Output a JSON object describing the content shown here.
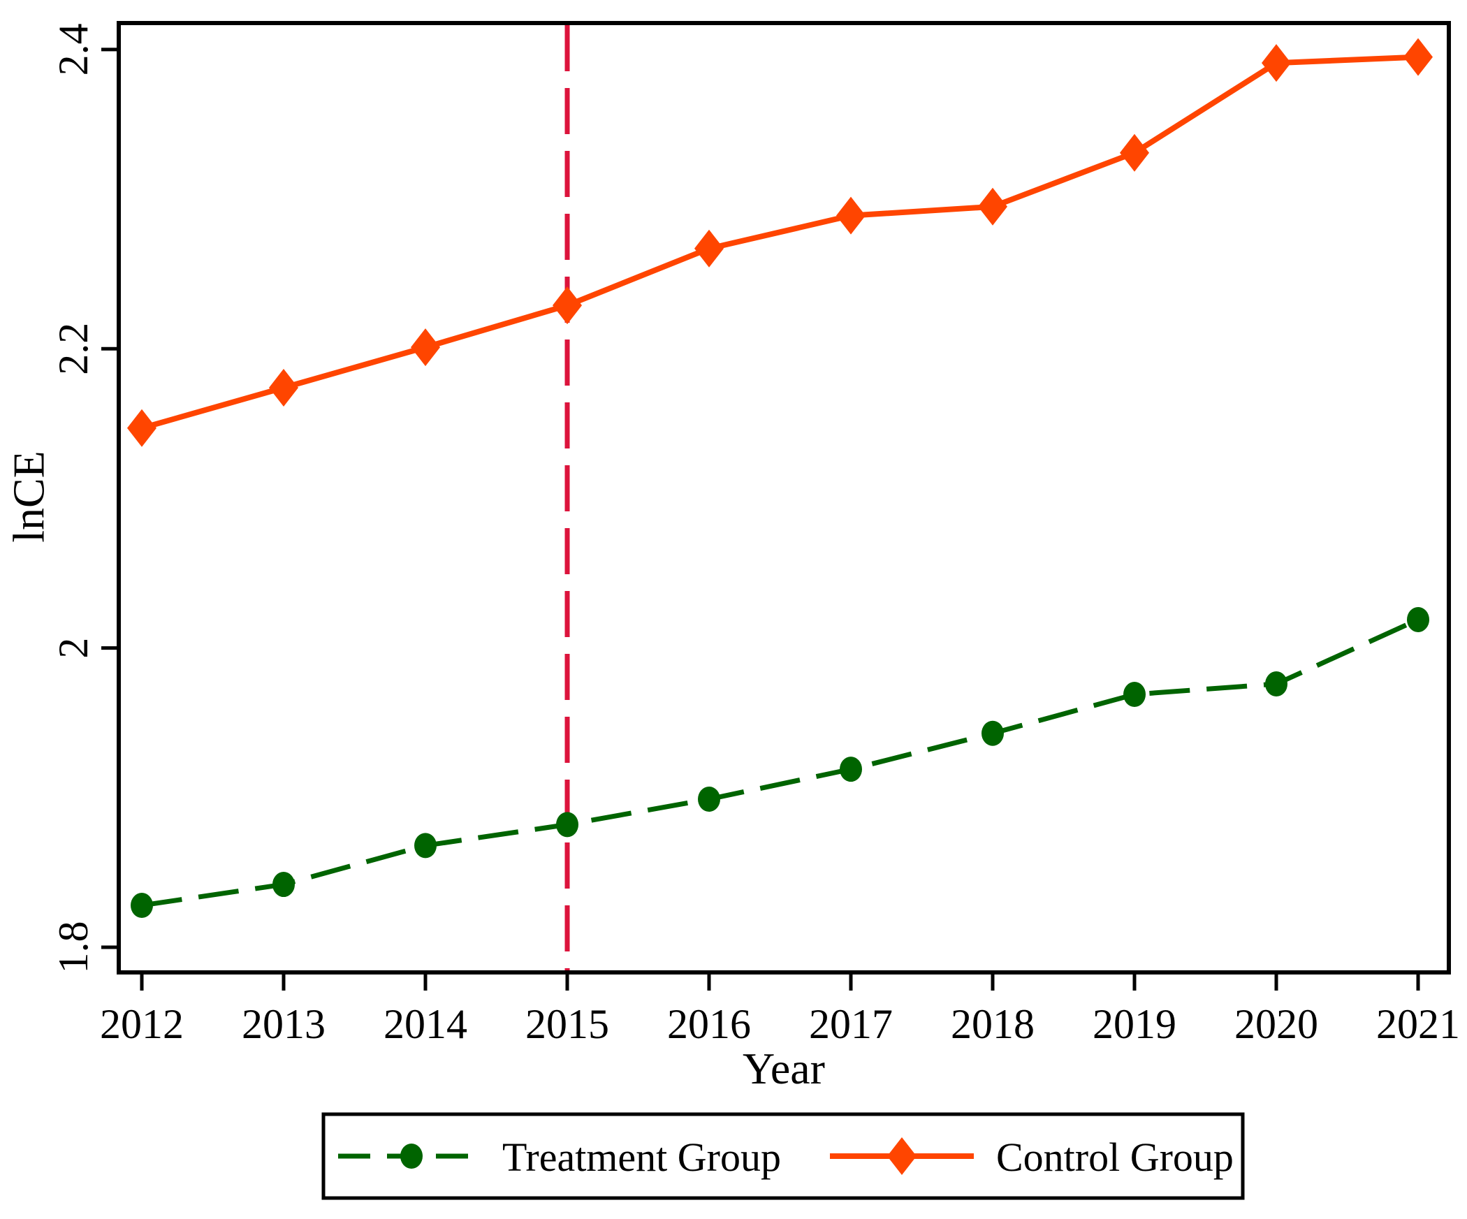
{
  "chart_data": {
    "type": "line",
    "x": [
      2012,
      2013,
      2014,
      2015,
      2016,
      2017,
      2018,
      2019,
      2020,
      2021
    ],
    "series": [
      {
        "name": "Treatment Group",
        "values": [
          1.828,
          1.842,
          1.868,
          1.882,
          1.899,
          1.919,
          1.943,
          1.969,
          1.976,
          2.019
        ],
        "color": "#006400",
        "marker": "circle",
        "line_style": "dashed"
      },
      {
        "name": "Control Group",
        "values": [
          2.147,
          2.174,
          2.201,
          2.229,
          2.267,
          2.289,
          2.295,
          2.331,
          2.391,
          2.395
        ],
        "color": "#FF4500",
        "marker": "diamond",
        "line_style": "solid"
      }
    ],
    "reference_line": {
      "x": 2015,
      "color": "#DC143C",
      "style": "dashed"
    },
    "title": "",
    "xlabel": "Year",
    "ylabel": "lnCE",
    "x_tick_labels": [
      "2012",
      "2013",
      "2014",
      "2015",
      "2016",
      "2017",
      "2018",
      "2019",
      "2020",
      "2021"
    ],
    "y_ticks": [
      1.8,
      2.0,
      2.2,
      2.4
    ],
    "y_tick_labels": [
      "1.8",
      "2",
      "2.2",
      "2.4"
    ],
    "xlim": [
      2011.8374,
      2021.2167
    ],
    "ylim": [
      1.7832,
      2.4177
    ],
    "grid": false,
    "legend_position": "bottom",
    "frame_color": "#000000"
  }
}
